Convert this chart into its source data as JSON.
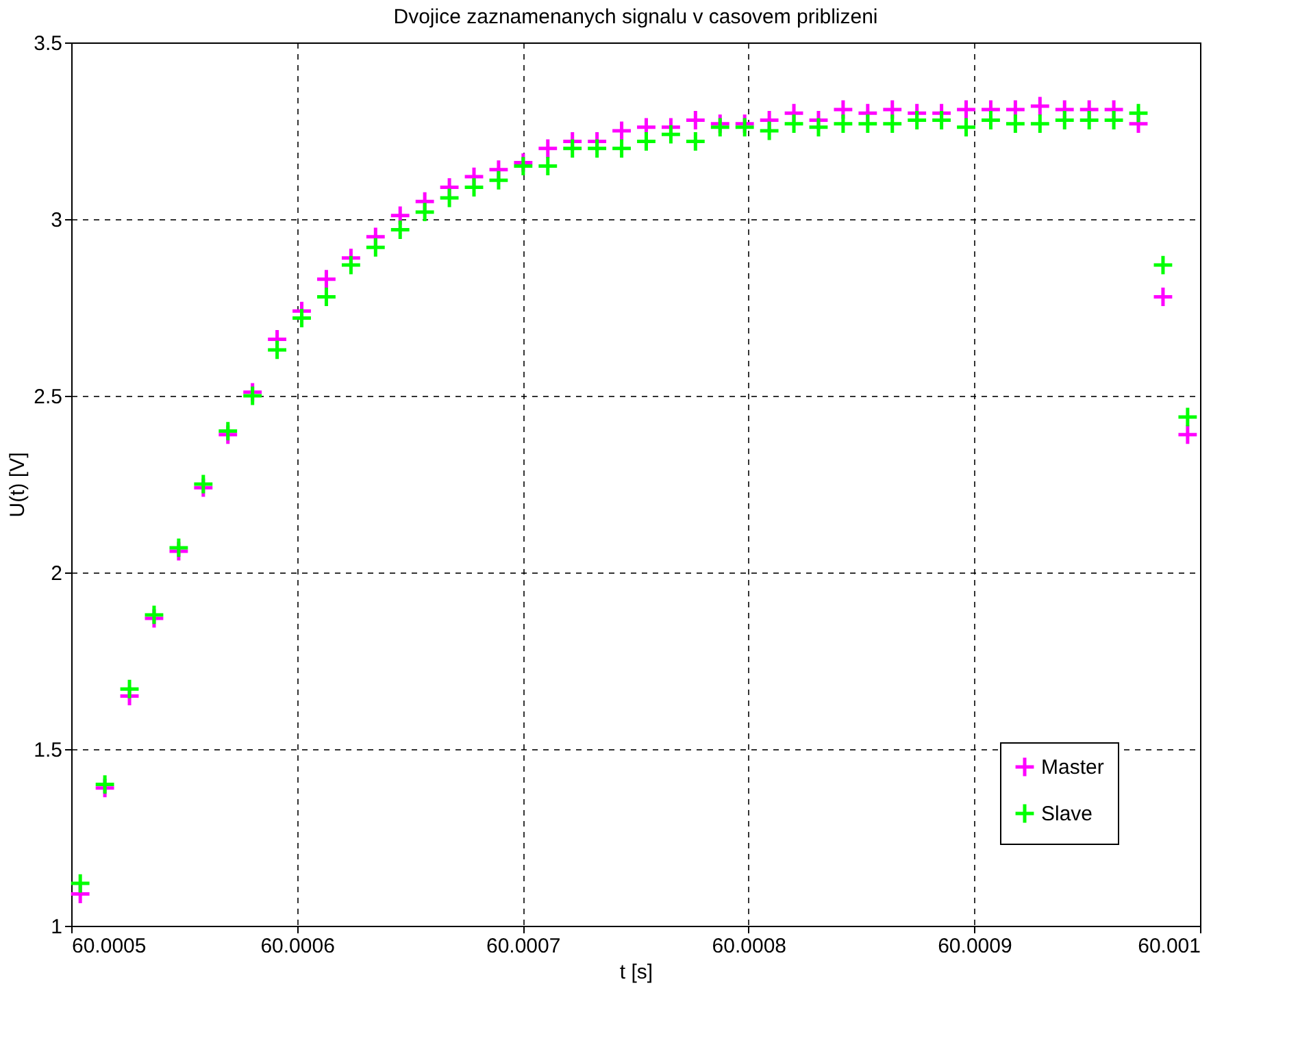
{
  "chart_data": {
    "type": "scatter",
    "title": "Dvojice zaznamenanych signalu v casovem priblizeni",
    "xlabel": "t [s]",
    "ylabel": "U(t) [V]",
    "x": [
      60.000504,
      60.0005149,
      60.0005258,
      60.0005367,
      60.0005476,
      60.0005585,
      60.0005694,
      60.0005803,
      60.0005912,
      60.0006021,
      60.000613,
      60.0006239,
      60.0006348,
      60.0006457,
      60.0006566,
      60.0006675,
      60.0006784,
      60.0006893,
      60.0007002,
      60.0007111,
      60.000722,
      60.0007329,
      60.0007438,
      60.0007547,
      60.0007656,
      60.0007765,
      60.0007874,
      60.0007983,
      60.0008092,
      60.0008201,
      60.000831,
      60.0008419,
      60.0008528,
      60.0008637,
      60.0008746,
      60.0008855,
      60.0008964,
      60.0009073,
      60.0009182,
      60.0009291,
      60.00094,
      60.0009509,
      60.0009618,
      60.0009727,
      60.0009836,
      60.0009945
    ],
    "series": [
      {
        "name": "Master",
        "color": "#ff00ff",
        "values": [
          1.09,
          1.39,
          1.65,
          1.87,
          2.06,
          2.24,
          2.39,
          2.51,
          2.66,
          2.74,
          2.83,
          2.89,
          2.95,
          3.01,
          3.05,
          3.09,
          3.12,
          3.14,
          3.16,
          3.2,
          3.22,
          3.22,
          3.25,
          3.26,
          3.26,
          3.28,
          3.27,
          3.27,
          3.28,
          3.3,
          3.28,
          3.31,
          3.3,
          3.31,
          3.3,
          3.3,
          3.31,
          3.31,
          3.31,
          3.32,
          3.31,
          3.31,
          3.31,
          3.27,
          2.78,
          2.39
        ]
      },
      {
        "name": "Slave",
        "color": "#00ff00",
        "values": [
          1.12,
          1.4,
          1.67,
          1.88,
          2.07,
          2.25,
          2.4,
          2.5,
          2.63,
          2.72,
          2.78,
          2.87,
          2.92,
          2.97,
          3.02,
          3.06,
          3.09,
          3.11,
          3.15,
          3.15,
          3.2,
          3.2,
          3.2,
          3.22,
          3.24,
          3.22,
          3.26,
          3.26,
          3.25,
          3.27,
          3.26,
          3.27,
          3.27,
          3.27,
          3.28,
          3.28,
          3.26,
          3.28,
          3.27,
          3.27,
          3.28,
          3.28,
          3.28,
          3.3,
          2.87,
          2.44
        ]
      }
    ],
    "xlim": [
      60.0005,
      60.001
    ],
    "xticks": [
      60.0005,
      60.0006,
      60.0007,
      60.0008,
      60.0009,
      60.001
    ],
    "ylim": [
      1,
      3.5
    ],
    "yticks": [
      1,
      1.5,
      2,
      2.5,
      3,
      3.5
    ],
    "grid": true,
    "legend": "bottom right",
    "marker": "cross"
  }
}
